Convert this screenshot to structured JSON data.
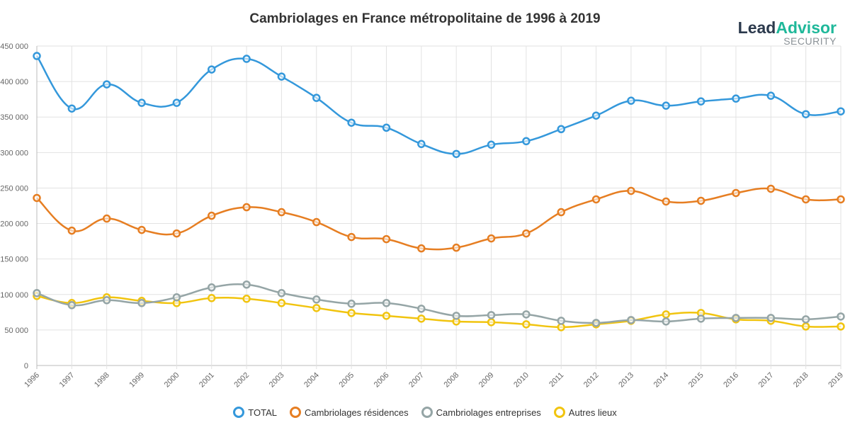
{
  "chart_data": {
    "type": "line",
    "title": "Cambriolages en France métropolitaine de 1996 à 2019",
    "x": [
      "1996",
      "1997",
      "1998",
      "1999",
      "2000",
      "2001",
      "2002",
      "2003",
      "2004",
      "2005",
      "2006",
      "2007",
      "2008",
      "2009",
      "2010",
      "2011",
      "2012",
      "2013",
      "2014",
      "2015",
      "2016",
      "2017",
      "2018",
      "2019"
    ],
    "ylim": [
      0,
      450000
    ],
    "yticks": [
      "0",
      "50 000",
      "100 000",
      "150 000",
      "200 000",
      "250 000",
      "300 000",
      "350 000",
      "400 000",
      "450 000"
    ],
    "grid": true,
    "legend_position": "bottom",
    "series": [
      {
        "name": "TOTAL",
        "color": "#3498db",
        "values": [
          436000,
          362000,
          396000,
          370000,
          370000,
          417000,
          432000,
          407000,
          377000,
          342000,
          335000,
          312000,
          298000,
          311000,
          316000,
          333000,
          352000,
          373000,
          366000,
          372000,
          376000,
          380000,
          354000,
          358000
        ]
      },
      {
        "name": "Cambriolages résidences",
        "color": "#e67e22",
        "values": [
          236000,
          190000,
          207000,
          191000,
          186000,
          211000,
          223000,
          216000,
          202000,
          181000,
          178000,
          165000,
          166000,
          179000,
          186000,
          216000,
          234000,
          246000,
          231000,
          232000,
          243000,
          249000,
          234000,
          234000
        ]
      },
      {
        "name": "Cambriolages entreprises",
        "color": "#95a5a6",
        "values": [
          102000,
          85000,
          92000,
          88000,
          96000,
          110000,
          114000,
          102000,
          93000,
          87000,
          88000,
          80000,
          70000,
          71000,
          72000,
          63000,
          60000,
          64000,
          62000,
          66000,
          67000,
          67000,
          65000,
          69000
        ]
      },
      {
        "name": "Autres lieux",
        "color": "#f1c40f",
        "values": [
          98000,
          88000,
          96000,
          91000,
          88000,
          95000,
          94000,
          88000,
          81000,
          74000,
          70000,
          66000,
          62000,
          61000,
          58000,
          54000,
          58000,
          63000,
          72000,
          74000,
          65000,
          63000,
          55000,
          55000
        ]
      }
    ]
  },
  "logo": {
    "part1": "Lead",
    "part2": "Advisor",
    "sub": "SECURITY"
  }
}
